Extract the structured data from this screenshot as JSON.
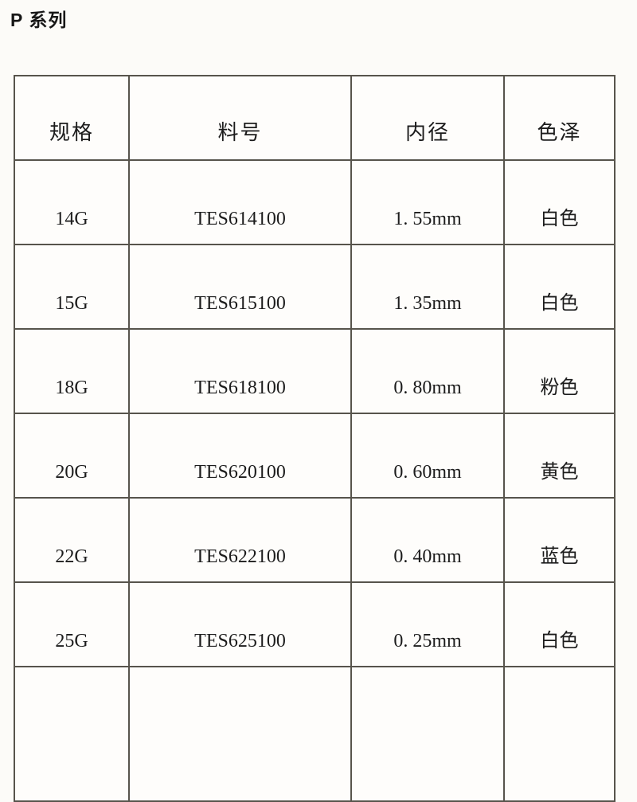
{
  "page": {
    "title": "P 系列"
  },
  "table": {
    "columns": [
      {
        "key": "spec",
        "label": "规格"
      },
      {
        "key": "part",
        "label": "料号"
      },
      {
        "key": "inner",
        "label": "内径"
      },
      {
        "key": "color",
        "label": "色泽"
      }
    ],
    "rows": [
      {
        "spec": "14G",
        "part": "TES614100",
        "inner": "1. 55mm",
        "color": "白色"
      },
      {
        "spec": "15G",
        "part": "TES615100",
        "inner": "1. 35mm",
        "color": "白色"
      },
      {
        "spec": "18G",
        "part": "TES618100",
        "inner": "0. 80mm",
        "color": "粉色"
      },
      {
        "spec": "20G",
        "part": "TES620100",
        "inner": "0. 60mm",
        "color": "黄色"
      },
      {
        "spec": "22G",
        "part": "TES622100",
        "inner": "0. 40mm",
        "color": "蓝色"
      },
      {
        "spec": "25G",
        "part": "TES625100",
        "inner": "0. 25mm",
        "color": "白色"
      }
    ],
    "empty_trailing_row": true,
    "border_color": "#57544c"
  }
}
